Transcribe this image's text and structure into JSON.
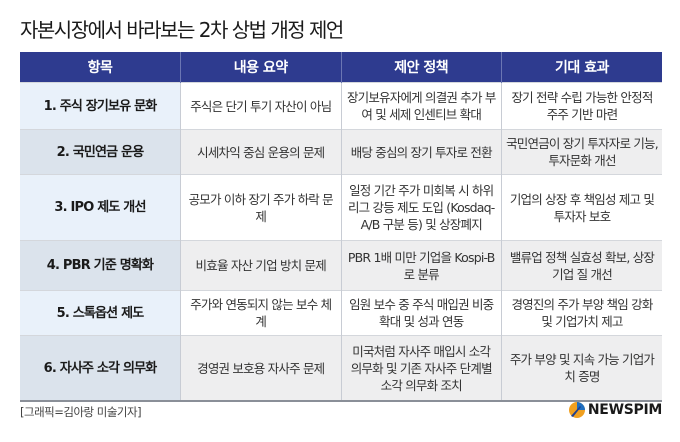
{
  "title": "자본시장에서 바라보는 2차 상법 개정 제언",
  "table": {
    "headers": [
      "항목",
      "내용 요약",
      "제안 정책",
      "기대 효과"
    ],
    "rows": [
      [
        "1. 주식 장기보유 문화",
        "주식은 단기 투기 자산이 아님",
        "장기보유자에게 의결권 추가 부여 및 세제 인센티브 확대",
        "장기 전략 수립 가능한 안정적 주주 기반 마련"
      ],
      [
        "2. 국민연금 운용",
        "시세차익 중심 운용의 문제",
        "배당 중심의 장기 투자로 전환",
        "국민연금이 장기 투자자로 기능, 투자문화 개선"
      ],
      [
        "3. IPO 제도 개선",
        "공모가 이하 장기 주가 하락 문제",
        "일정 기간 주가 미회복 시 하위리그 강등 제도 도입 (Kosdaq-A/B 구분 등) 및 상장폐지",
        "기업의 상장 후 책임성 제고 및 투자자 보호"
      ],
      [
        "4. PBR 기준 명확화",
        "비효율 자산 기업 방치 문제",
        "PBR 1배 미만 기업을 Kospi-B로 분류",
        "밸류업 정책 실효성 확보, 상장기업 질 개선"
      ],
      [
        "5. 스톡옵션 제도",
        "주가와 연동되지 않는 보수 체계",
        "임원 보수 중 주식 매입권 비중 확대 및 성과 연동",
        "경영진의 주가 부양 책임 강화 및 기업가치 제고"
      ],
      [
        "6. 자사주 소각 의무화",
        "경영권 보호용 자사주 문제",
        "미국처럼 자사주 매입시 소각 의무화 및 기존 자사주 단계별 소각 의무화 조치",
        "주가 부양 및 지속 가능 기업가치 증명"
      ]
    ]
  },
  "footer": {
    "credit": "[그래픽=김아랑 미술기자]",
    "logo": "NEWSPIM"
  },
  "colors": {
    "header": "#2e3b8f",
    "first_col": "#e9f1fa",
    "alt_row": "#eeeeef"
  }
}
